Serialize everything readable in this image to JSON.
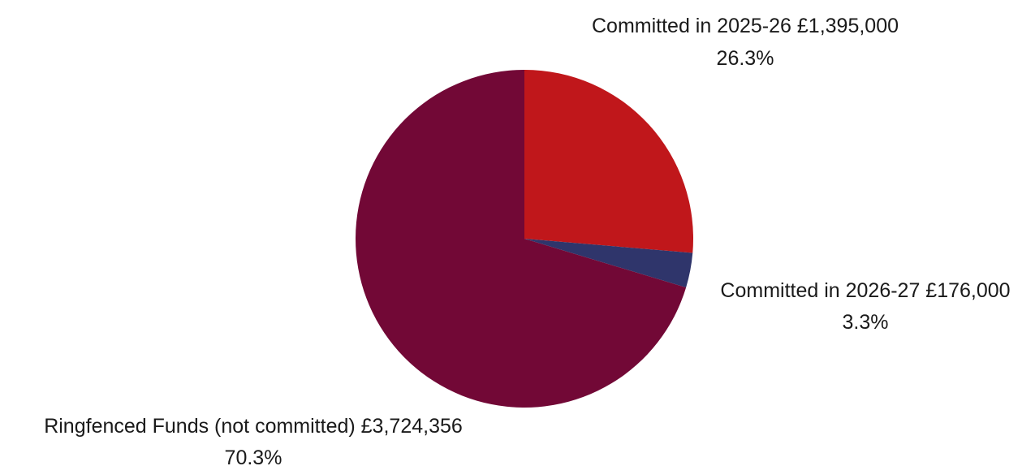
{
  "chart_data": {
    "type": "pie",
    "title": "",
    "slices": [
      {
        "label": "Committed in 2025-26 £1,395,000",
        "value": 1395000,
        "percent_label": "26.3%",
        "color": "#c0171b"
      },
      {
        "label": "Committed in 2026-27 £176,000",
        "value": 176000,
        "percent_label": "3.3%",
        "color": "#2f356b"
      },
      {
        "label": "Ringfenced Funds (not committed) £3,724,356",
        "value": 3724356,
        "percent_label": "70.3%",
        "color": "#720836"
      }
    ],
    "start_angle": "12 o'clock",
    "direction": "clockwise",
    "legend": "none"
  }
}
